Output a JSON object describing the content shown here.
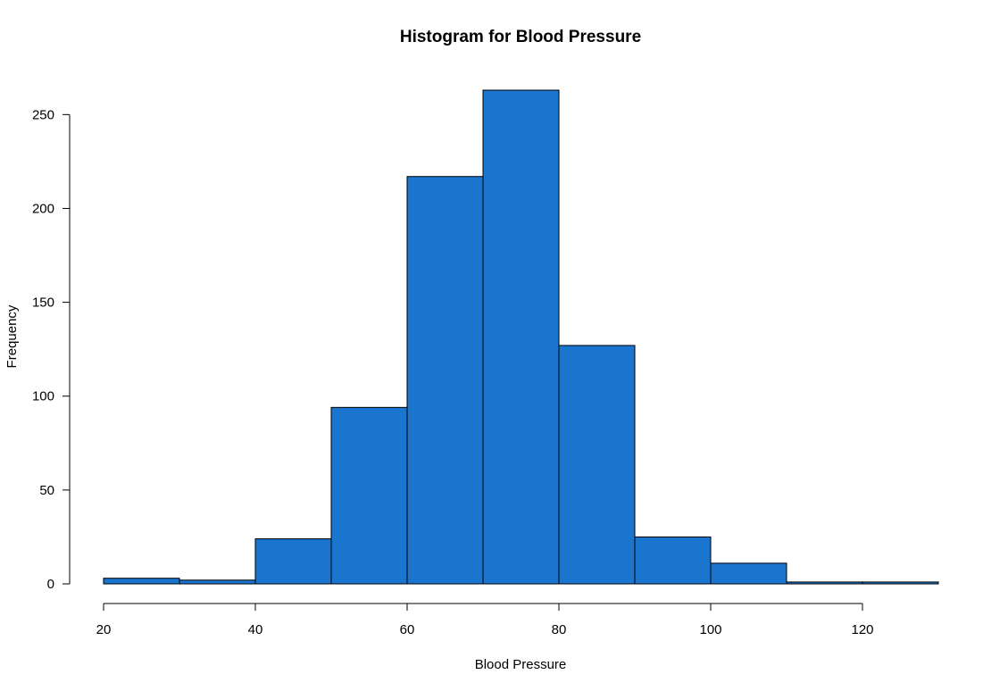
{
  "chart_data": {
    "type": "bar",
    "title": "Histogram for Blood Pressure",
    "xlabel": "Blood Pressure",
    "ylabel": "Frequency",
    "bin_edges": [
      20,
      30,
      40,
      50,
      60,
      70,
      80,
      90,
      100,
      110,
      120,
      130
    ],
    "values": [
      3,
      2,
      24,
      94,
      217,
      263,
      127,
      25,
      11,
      1,
      1
    ],
    "x_ticks": [
      20,
      40,
      60,
      80,
      100,
      120
    ],
    "y_ticks": [
      0,
      50,
      100,
      150,
      200,
      250
    ],
    "xlim": [
      20,
      130
    ],
    "ylim": [
      0,
      263
    ],
    "bar_color": "#1a75cf",
    "edge_color": "#000000",
    "grid": false
  }
}
